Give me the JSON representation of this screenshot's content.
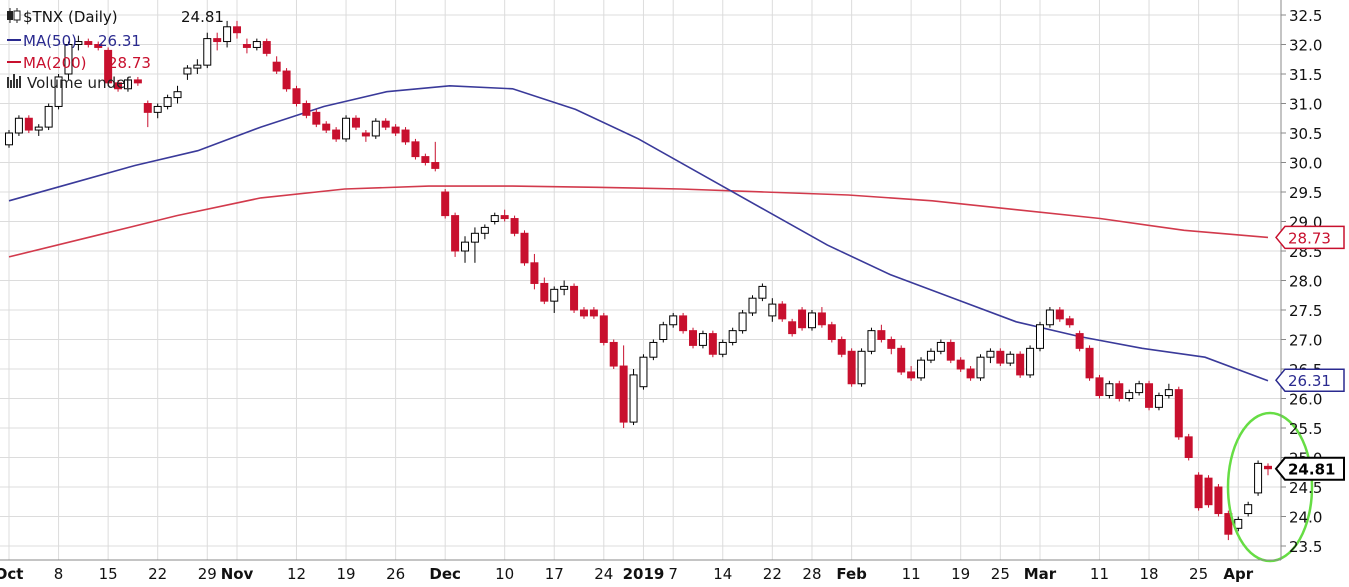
{
  "chart_data": {
    "type": "candlestick",
    "symbol_label": "$TNX (Daily)",
    "last_price": "24.81",
    "legend": [
      {
        "label": "MA(50)",
        "value": "26.31",
        "color": "#2a2a8f",
        "icon": "line-swatch"
      },
      {
        "label": "MA(200)",
        "value": "28.73",
        "color": "#c8102e",
        "icon": "line-swatch"
      },
      {
        "label": "Volume undef",
        "value": "",
        "color": "#333333",
        "icon": "volume-bars-icon"
      }
    ],
    "ylim": [
      23.3,
      32.7
    ],
    "y_ticks": [
      "32.5",
      "32.0",
      "31.5",
      "31.0",
      "30.5",
      "30.0",
      "29.5",
      "29.0",
      "28.5",
      "28.0",
      "27.5",
      "27.0",
      "26.5",
      "26.0",
      "25.5",
      "25.0",
      "24.5",
      "24.0",
      "23.5"
    ],
    "x_ticks": [
      {
        "label": "Oct",
        "bold": true,
        "i": 0
      },
      {
        "label": "8",
        "bold": false,
        "i": 5
      },
      {
        "label": "15",
        "bold": false,
        "i": 10
      },
      {
        "label": "22",
        "bold": false,
        "i": 15
      },
      {
        "label": "29",
        "bold": false,
        "i": 20
      },
      {
        "label": "Nov",
        "bold": true,
        "i": 23
      },
      {
        "label": "12",
        "bold": false,
        "i": 29
      },
      {
        "label": "19",
        "bold": false,
        "i": 34
      },
      {
        "label": "26",
        "bold": false,
        "i": 39
      },
      {
        "label": "Dec",
        "bold": true,
        "i": 44
      },
      {
        "label": "10",
        "bold": false,
        "i": 50
      },
      {
        "label": "17",
        "bold": false,
        "i": 55
      },
      {
        "label": "24",
        "bold": false,
        "i": 60
      },
      {
        "label": "2019",
        "bold": true,
        "i": 64
      },
      {
        "label": "7",
        "bold": false,
        "i": 67
      },
      {
        "label": "14",
        "bold": false,
        "i": 72
      },
      {
        "label": "22",
        "bold": false,
        "i": 77
      },
      {
        "label": "28",
        "bold": false,
        "i": 81
      },
      {
        "label": "Feb",
        "bold": true,
        "i": 85
      },
      {
        "label": "11",
        "bold": false,
        "i": 91
      },
      {
        "label": "19",
        "bold": false,
        "i": 96
      },
      {
        "label": "25",
        "bold": false,
        "i": 100
      },
      {
        "label": "Mar",
        "bold": true,
        "i": 104
      },
      {
        "label": "11",
        "bold": false,
        "i": 110
      },
      {
        "label": "18",
        "bold": false,
        "i": 115
      },
      {
        "label": "25",
        "bold": false,
        "i": 120
      },
      {
        "label": "Apr",
        "bold": true,
        "i": 124
      }
    ],
    "ma50": [
      29.35,
      29.65,
      29.95,
      30.2,
      30.6,
      30.95,
      31.2,
      31.3,
      31.25,
      30.9,
      30.4,
      29.8,
      29.2,
      28.6,
      28.1,
      27.7,
      27.3,
      27.05,
      26.85,
      26.7,
      26.3
    ],
    "ma200": [
      28.4,
      28.75,
      29.1,
      29.4,
      29.55,
      29.6,
      29.6,
      29.58,
      29.55,
      29.5,
      29.45,
      29.35,
      29.2,
      29.05,
      28.85,
      28.73
    ],
    "flags": [
      {
        "value": "28.73",
        "y": 28.73,
        "color": "#c8102e",
        "bold": false
      },
      {
        "value": "26.31",
        "y": 26.31,
        "color": "#2a2a8f",
        "bold": false
      },
      {
        "value": "24.81",
        "y": 24.81,
        "color": "#000000",
        "bold": true
      }
    ],
    "highlight_color": "#66dd44",
    "candles": [
      [
        30.3,
        30.55,
        30.25,
        30.5
      ],
      [
        30.5,
        30.8,
        30.45,
        30.75
      ],
      [
        30.75,
        30.8,
        30.5,
        30.55
      ],
      [
        30.55,
        30.65,
        30.45,
        30.6
      ],
      [
        30.6,
        31.0,
        30.55,
        30.95
      ],
      [
        30.95,
        31.5,
        30.9,
        31.45
      ],
      [
        31.5,
        32.05,
        31.4,
        32.0
      ],
      [
        32.0,
        32.15,
        31.9,
        32.05
      ],
      [
        32.05,
        32.1,
        31.95,
        32.0
      ],
      [
        32.0,
        32.05,
        31.9,
        31.95
      ],
      [
        31.9,
        31.95,
        31.3,
        31.35
      ],
      [
        31.35,
        31.4,
        31.2,
        31.25
      ],
      [
        31.25,
        31.45,
        31.2,
        31.4
      ],
      [
        31.4,
        31.45,
        31.3,
        31.35
      ],
      [
        31.0,
        31.05,
        30.6,
        30.85
      ],
      [
        30.85,
        31.0,
        30.75,
        30.95
      ],
      [
        30.95,
        31.15,
        30.9,
        31.1
      ],
      [
        31.1,
        31.3,
        31.0,
        31.2
      ],
      [
        31.5,
        31.65,
        31.4,
        31.6
      ],
      [
        31.6,
        31.75,
        31.5,
        31.65
      ],
      [
        31.65,
        32.2,
        31.6,
        32.1
      ],
      [
        32.1,
        32.2,
        31.9,
        32.05
      ],
      [
        32.05,
        32.4,
        31.95,
        32.3
      ],
      [
        32.3,
        32.4,
        32.1,
        32.2
      ],
      [
        32.0,
        32.1,
        31.85,
        31.95
      ],
      [
        31.95,
        32.1,
        31.9,
        32.05
      ],
      [
        32.05,
        32.1,
        31.8,
        31.85
      ],
      [
        31.7,
        31.8,
        31.5,
        31.55
      ],
      [
        31.55,
        31.6,
        31.2,
        31.25
      ],
      [
        31.25,
        31.3,
        30.95,
        31.0
      ],
      [
        31.0,
        31.05,
        30.75,
        30.8
      ],
      [
        30.85,
        30.9,
        30.6,
        30.65
      ],
      [
        30.65,
        30.7,
        30.5,
        30.55
      ],
      [
        30.55,
        30.6,
        30.35,
        30.4
      ],
      [
        30.4,
        30.8,
        30.35,
        30.75
      ],
      [
        30.75,
        30.8,
        30.55,
        30.6
      ],
      [
        30.5,
        30.55,
        30.35,
        30.45
      ],
      [
        30.45,
        30.75,
        30.4,
        30.7
      ],
      [
        30.7,
        30.75,
        30.55,
        30.6
      ],
      [
        30.6,
        30.65,
        30.45,
        30.5
      ],
      [
        30.55,
        30.6,
        30.3,
        30.35
      ],
      [
        30.35,
        30.4,
        30.05,
        30.1
      ],
      [
        30.1,
        30.15,
        29.95,
        30.0
      ],
      [
        30.0,
        30.35,
        29.85,
        29.9
      ],
      [
        29.5,
        29.55,
        29.05,
        29.1
      ],
      [
        29.1,
        29.15,
        28.4,
        28.5
      ],
      [
        28.5,
        28.75,
        28.3,
        28.65
      ],
      [
        28.65,
        28.9,
        28.3,
        28.8
      ],
      [
        28.8,
        28.95,
        28.7,
        28.9
      ],
      [
        29.0,
        29.15,
        28.95,
        29.1
      ],
      [
        29.1,
        29.2,
        29.0,
        29.05
      ],
      [
        29.05,
        29.1,
        28.75,
        28.8
      ],
      [
        28.8,
        28.85,
        28.25,
        28.3
      ],
      [
        28.3,
        28.45,
        27.85,
        27.95
      ],
      [
        27.95,
        28.05,
        27.6,
        27.65
      ],
      [
        27.65,
        27.9,
        27.45,
        27.85
      ],
      [
        27.85,
        28.0,
        27.75,
        27.9
      ],
      [
        27.9,
        27.95,
        27.45,
        27.5
      ],
      [
        27.5,
        27.55,
        27.35,
        27.4
      ],
      [
        27.5,
        27.55,
        27.35,
        27.4
      ],
      [
        27.4,
        27.45,
        26.9,
        26.95
      ],
      [
        26.95,
        27.0,
        26.5,
        26.55
      ],
      [
        26.55,
        26.9,
        25.5,
        25.6
      ],
      [
        25.6,
        26.5,
        25.55,
        26.4
      ],
      [
        26.2,
        26.75,
        26.15,
        26.7
      ],
      [
        26.7,
        27.0,
        26.65,
        26.95
      ],
      [
        27.0,
        27.3,
        26.95,
        27.25
      ],
      [
        27.25,
        27.45,
        27.2,
        27.4
      ],
      [
        27.4,
        27.45,
        27.1,
        27.15
      ],
      [
        27.15,
        27.2,
        26.85,
        26.9
      ],
      [
        26.9,
        27.15,
        26.85,
        27.1
      ],
      [
        27.1,
        27.15,
        26.7,
        26.75
      ],
      [
        26.75,
        27.0,
        26.7,
        26.95
      ],
      [
        26.95,
        27.2,
        26.9,
        27.15
      ],
      [
        27.15,
        27.5,
        27.1,
        27.45
      ],
      [
        27.45,
        27.75,
        27.4,
        27.7
      ],
      [
        27.7,
        27.95,
        27.65,
        27.9
      ],
      [
        27.4,
        27.7,
        27.3,
        27.6
      ],
      [
        27.6,
        27.65,
        27.3,
        27.35
      ],
      [
        27.3,
        27.35,
        27.05,
        27.1
      ],
      [
        27.5,
        27.55,
        27.15,
        27.2
      ],
      [
        27.2,
        27.5,
        27.15,
        27.45
      ],
      [
        27.45,
        27.55,
        27.2,
        27.25
      ],
      [
        27.25,
        27.3,
        26.95,
        27.0
      ],
      [
        27.0,
        27.05,
        26.7,
        26.75
      ],
      [
        26.8,
        26.85,
        26.2,
        26.25
      ],
      [
        26.25,
        26.85,
        26.2,
        26.8
      ],
      [
        26.8,
        27.2,
        26.75,
        27.15
      ],
      [
        27.15,
        27.25,
        26.95,
        27.0
      ],
      [
        27.0,
        27.05,
        26.75,
        26.85
      ],
      [
        26.85,
        26.9,
        26.4,
        26.45
      ],
      [
        26.45,
        26.55,
        26.3,
        26.35
      ],
      [
        26.35,
        26.7,
        26.3,
        26.65
      ],
      [
        26.65,
        26.85,
        26.6,
        26.8
      ],
      [
        26.8,
        27.0,
        26.75,
        26.95
      ],
      [
        26.95,
        27.0,
        26.6,
        26.65
      ],
      [
        26.65,
        26.7,
        26.45,
        26.5
      ],
      [
        26.5,
        26.55,
        26.3,
        26.35
      ],
      [
        26.35,
        26.75,
        26.3,
        26.7
      ],
      [
        26.7,
        26.85,
        26.6,
        26.8
      ],
      [
        26.8,
        26.85,
        26.55,
        26.6
      ],
      [
        26.6,
        26.8,
        26.55,
        26.75
      ],
      [
        26.75,
        26.8,
        26.35,
        26.4
      ],
      [
        26.4,
        26.9,
        26.35,
        26.85
      ],
      [
        26.85,
        27.3,
        26.8,
        27.25
      ],
      [
        27.25,
        27.55,
        27.2,
        27.5
      ],
      [
        27.5,
        27.55,
        27.3,
        27.35
      ],
      [
        27.35,
        27.4,
        27.2,
        27.25
      ],
      [
        27.1,
        27.15,
        26.8,
        26.85
      ],
      [
        26.85,
        26.9,
        26.3,
        26.35
      ],
      [
        26.35,
        26.4,
        26.0,
        26.05
      ],
      [
        26.05,
        26.3,
        26.0,
        26.25
      ],
      [
        26.25,
        26.3,
        25.95,
        26.0
      ],
      [
        26.0,
        26.15,
        25.95,
        26.1
      ],
      [
        26.1,
        26.3,
        26.05,
        26.25
      ],
      [
        26.25,
        26.3,
        25.8,
        25.85
      ],
      [
        25.85,
        26.1,
        25.8,
        26.05
      ],
      [
        26.05,
        26.25,
        26.0,
        26.15
      ],
      [
        26.15,
        26.2,
        25.3,
        25.35
      ],
      [
        25.35,
        25.4,
        24.95,
        25.0
      ],
      [
        24.7,
        24.75,
        24.1,
        24.15
      ],
      [
        24.65,
        24.7,
        24.15,
        24.2
      ],
      [
        24.5,
        24.55,
        24.0,
        24.05
      ],
      [
        24.05,
        24.1,
        23.6,
        23.7
      ],
      [
        23.8,
        24.0,
        23.75,
        23.95
      ],
      [
        24.05,
        24.25,
        24.0,
        24.2
      ],
      [
        24.4,
        24.95,
        24.35,
        24.9
      ],
      [
        24.85,
        24.9,
        24.7,
        24.81
      ]
    ]
  }
}
